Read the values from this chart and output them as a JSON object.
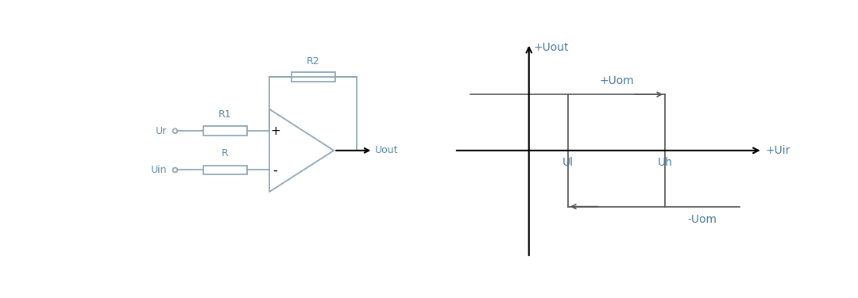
{
  "circuit_color": "#8fa8b8",
  "line_color": "#000000",
  "text_color": "#000000",
  "circuit_text_color": "#5a8aa8",
  "graph_line_color": "#555555",
  "graph_label_color": "#4a7a9a",
  "axis_label_color": "#4a7a9a",
  "bg_color": "#ffffff",
  "labels": {
    "R1": "R1",
    "R2": "R2",
    "R": "R",
    "Ur": "Ur",
    "Uin": "Uin",
    "Uout": "Uout",
    "plus": "+",
    "minus": "-",
    "xaxis": "+Uir",
    "yaxis": "+Uout",
    "Uom_pos": "+Uom",
    "Uom_neg": "-Uom",
    "Ul": "Ul",
    "Uh": "Uh"
  }
}
